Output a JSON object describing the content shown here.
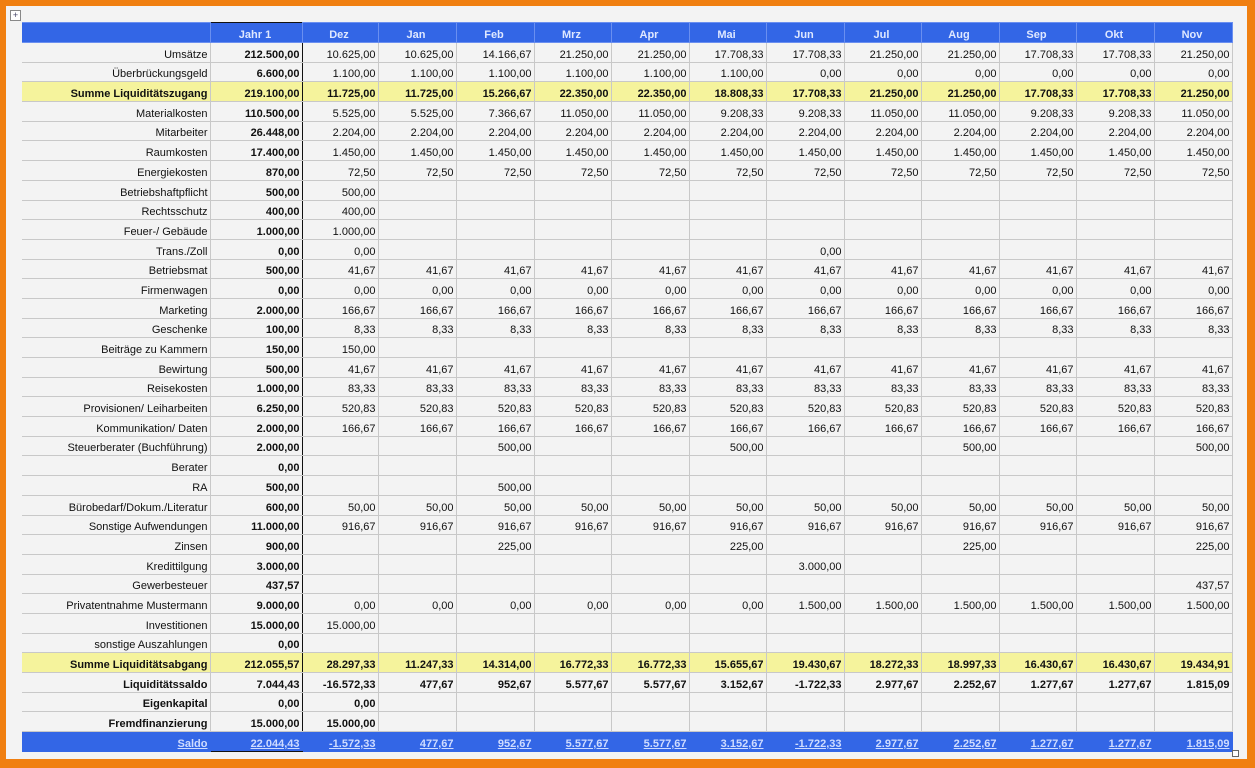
{
  "header": {
    "label": "",
    "columns": [
      "Jahr 1",
      "Dez",
      "Jan",
      "Feb",
      "Mrz",
      "Apr",
      "Mai",
      "Jun",
      "Jul",
      "Aug",
      "Sep",
      "Okt",
      "Nov"
    ]
  },
  "colors": {
    "header": "#3366e6",
    "sum": "#f5f39c",
    "border": "#f07f10"
  },
  "rows": [
    {
      "label": "Umsätze",
      "type": "normal",
      "values": [
        "212.500,00",
        "10.625,00",
        "10.625,00",
        "14.166,67",
        "21.250,00",
        "21.250,00",
        "17.708,33",
        "17.708,33",
        "21.250,00",
        "21.250,00",
        "17.708,33",
        "17.708,33",
        "21.250,00"
      ]
    },
    {
      "label": "Überbrückungsgeld",
      "type": "normal",
      "values": [
        "6.600,00",
        "1.100,00",
        "1.100,00",
        "1.100,00",
        "1.100,00",
        "1.100,00",
        "1.100,00",
        "0,00",
        "0,00",
        "0,00",
        "0,00",
        "0,00",
        "0,00"
      ]
    },
    {
      "label": "Summe Liquiditätszugang",
      "type": "sum",
      "values": [
        "219.100,00",
        "11.725,00",
        "11.725,00",
        "15.266,67",
        "22.350,00",
        "22.350,00",
        "18.808,33",
        "17.708,33",
        "21.250,00",
        "21.250,00",
        "17.708,33",
        "17.708,33",
        "21.250,00"
      ]
    },
    {
      "label": "Materialkosten",
      "type": "normal",
      "values": [
        "110.500,00",
        "5.525,00",
        "5.525,00",
        "7.366,67",
        "11.050,00",
        "11.050,00",
        "9.208,33",
        "9.208,33",
        "11.050,00",
        "11.050,00",
        "9.208,33",
        "9.208,33",
        "11.050,00"
      ]
    },
    {
      "label": "Mitarbeiter",
      "type": "normal",
      "values": [
        "26.448,00",
        "2.204,00",
        "2.204,00",
        "2.204,00",
        "2.204,00",
        "2.204,00",
        "2.204,00",
        "2.204,00",
        "2.204,00",
        "2.204,00",
        "2.204,00",
        "2.204,00",
        "2.204,00"
      ]
    },
    {
      "label": "Raumkosten",
      "type": "normal",
      "values": [
        "17.400,00",
        "1.450,00",
        "1.450,00",
        "1.450,00",
        "1.450,00",
        "1.450,00",
        "1.450,00",
        "1.450,00",
        "1.450,00",
        "1.450,00",
        "1.450,00",
        "1.450,00",
        "1.450,00"
      ]
    },
    {
      "label": "Energiekosten",
      "type": "normal",
      "values": [
        "870,00",
        "72,50",
        "72,50",
        "72,50",
        "72,50",
        "72,50",
        "72,50",
        "72,50",
        "72,50",
        "72,50",
        "72,50",
        "72,50",
        "72,50"
      ]
    },
    {
      "label": "Betriebshaftpflicht",
      "type": "normal",
      "values": [
        "500,00",
        "500,00",
        "",
        "",
        "",
        "",
        "",
        "",
        "",
        "",
        "",
        "",
        ""
      ]
    },
    {
      "label": "Rechtsschutz",
      "type": "normal",
      "values": [
        "400,00",
        "400,00",
        "",
        "",
        "",
        "",
        "",
        "",
        "",
        "",
        "",
        "",
        ""
      ]
    },
    {
      "label": "Feuer-/ Gebäude",
      "type": "normal",
      "values": [
        "1.000,00",
        "1.000,00",
        "",
        "",
        "",
        "",
        "",
        "",
        "",
        "",
        "",
        "",
        ""
      ]
    },
    {
      "label": "Trans./Zoll",
      "type": "normal",
      "values": [
        "0,00",
        "0,00",
        "",
        "",
        "",
        "",
        "",
        "0,00",
        "",
        "",
        "",
        "",
        ""
      ]
    },
    {
      "label": "Betriebsmat",
      "type": "normal",
      "values": [
        "500,00",
        "41,67",
        "41,67",
        "41,67",
        "41,67",
        "41,67",
        "41,67",
        "41,67",
        "41,67",
        "41,67",
        "41,67",
        "41,67",
        "41,67"
      ]
    },
    {
      "label": "Firmenwagen",
      "type": "normal",
      "values": [
        "0,00",
        "0,00",
        "0,00",
        "0,00",
        "0,00",
        "0,00",
        "0,00",
        "0,00",
        "0,00",
        "0,00",
        "0,00",
        "0,00",
        "0,00"
      ]
    },
    {
      "label": "Marketing",
      "type": "normal",
      "values": [
        "2.000,00",
        "166,67",
        "166,67",
        "166,67",
        "166,67",
        "166,67",
        "166,67",
        "166,67",
        "166,67",
        "166,67",
        "166,67",
        "166,67",
        "166,67"
      ]
    },
    {
      "label": "Geschenke",
      "type": "normal",
      "values": [
        "100,00",
        "8,33",
        "8,33",
        "8,33",
        "8,33",
        "8,33",
        "8,33",
        "8,33",
        "8,33",
        "8,33",
        "8,33",
        "8,33",
        "8,33"
      ]
    },
    {
      "label": "Beiträge zu Kammern",
      "type": "normal",
      "values": [
        "150,00",
        "150,00",
        "",
        "",
        "",
        "",
        "",
        "",
        "",
        "",
        "",
        "",
        ""
      ]
    },
    {
      "label": "Bewirtung",
      "type": "normal",
      "values": [
        "500,00",
        "41,67",
        "41,67",
        "41,67",
        "41,67",
        "41,67",
        "41,67",
        "41,67",
        "41,67",
        "41,67",
        "41,67",
        "41,67",
        "41,67"
      ]
    },
    {
      "label": "Reisekosten",
      "type": "normal",
      "values": [
        "1.000,00",
        "83,33",
        "83,33",
        "83,33",
        "83,33",
        "83,33",
        "83,33",
        "83,33",
        "83,33",
        "83,33",
        "83,33",
        "83,33",
        "83,33"
      ]
    },
    {
      "label": "Provisionen/ Leiharbeiten",
      "type": "normal",
      "values": [
        "6.250,00",
        "520,83",
        "520,83",
        "520,83",
        "520,83",
        "520,83",
        "520,83",
        "520,83",
        "520,83",
        "520,83",
        "520,83",
        "520,83",
        "520,83"
      ]
    },
    {
      "label": "Kommunikation/ Daten",
      "type": "normal",
      "values": [
        "2.000,00",
        "166,67",
        "166,67",
        "166,67",
        "166,67",
        "166,67",
        "166,67",
        "166,67",
        "166,67",
        "166,67",
        "166,67",
        "166,67",
        "166,67"
      ]
    },
    {
      "label": "Steuerberater (Buchführung)",
      "type": "normal",
      "values": [
        "2.000,00",
        "",
        "",
        "500,00",
        "",
        "",
        "500,00",
        "",
        "",
        "500,00",
        "",
        "",
        "500,00"
      ]
    },
    {
      "label": "Berater",
      "type": "normal",
      "values": [
        "0,00",
        "",
        "",
        "",
        "",
        "",
        "",
        "",
        "",
        "",
        "",
        "",
        ""
      ]
    },
    {
      "label": "RA",
      "type": "normal",
      "values": [
        "500,00",
        "",
        "",
        "500,00",
        "",
        "",
        "",
        "",
        "",
        "",
        "",
        "",
        ""
      ]
    },
    {
      "label": "Bürobedarf/Dokum./Literatur",
      "type": "normal",
      "values": [
        "600,00",
        "50,00",
        "50,00",
        "50,00",
        "50,00",
        "50,00",
        "50,00",
        "50,00",
        "50,00",
        "50,00",
        "50,00",
        "50,00",
        "50,00"
      ]
    },
    {
      "label": "Sonstige Aufwendungen",
      "type": "normal",
      "values": [
        "11.000,00",
        "916,67",
        "916,67",
        "916,67",
        "916,67",
        "916,67",
        "916,67",
        "916,67",
        "916,67",
        "916,67",
        "916,67",
        "916,67",
        "916,67"
      ]
    },
    {
      "label": "Zinsen",
      "type": "normal",
      "values": [
        "900,00",
        "",
        "",
        "225,00",
        "",
        "",
        "225,00",
        "",
        "",
        "225,00",
        "",
        "",
        "225,00"
      ]
    },
    {
      "label": "Kredittilgung",
      "type": "normal",
      "values": [
        "3.000,00",
        "",
        "",
        "",
        "",
        "",
        "",
        "3.000,00",
        "",
        "",
        "",
        "",
        ""
      ]
    },
    {
      "label": "Gewerbesteuer",
      "type": "normal",
      "values": [
        "437,57",
        "",
        "",
        "",
        "",
        "",
        "",
        "",
        "",
        "",
        "",
        "",
        "437,57"
      ]
    },
    {
      "label": "Privatentnahme Mustermann",
      "type": "normal",
      "values": [
        "9.000,00",
        "0,00",
        "0,00",
        "0,00",
        "0,00",
        "0,00",
        "0,00",
        "1.500,00",
        "1.500,00",
        "1.500,00",
        "1.500,00",
        "1.500,00",
        "1.500,00"
      ]
    },
    {
      "label": "Investitionen",
      "type": "normal",
      "values": [
        "15.000,00",
        "15.000,00",
        "",
        "",
        "",
        "",
        "",
        "",
        "",
        "",
        "",
        "",
        ""
      ]
    },
    {
      "label": "sonstige Auszahlungen",
      "type": "normal",
      "values": [
        "0,00",
        "",
        "",
        "",
        "",
        "",
        "",
        "",
        "",
        "",
        "",
        "",
        ""
      ]
    },
    {
      "label": "Summe Liquiditätsabgang",
      "type": "sum",
      "values": [
        "212.055,57",
        "28.297,33",
        "11.247,33",
        "14.314,00",
        "16.772,33",
        "16.772,33",
        "15.655,67",
        "19.430,67",
        "18.272,33",
        "18.997,33",
        "16.430,67",
        "16.430,67",
        "19.434,91"
      ]
    },
    {
      "label": "Liquiditätssaldo",
      "type": "bold",
      "values": [
        "7.044,43",
        "-16.572,33",
        "477,67",
        "952,67",
        "5.577,67",
        "5.577,67",
        "3.152,67",
        "-1.722,33",
        "2.977,67",
        "2.252,67",
        "1.277,67",
        "1.277,67",
        "1.815,09"
      ]
    },
    {
      "label": "Eigenkapital",
      "type": "bold",
      "values": [
        "0,00",
        "0,00",
        "",
        "",
        "",
        "",
        "",
        "",
        "",
        "",
        "",
        "",
        ""
      ]
    },
    {
      "label": "Fremdfinanzierung",
      "type": "bold",
      "values": [
        "15.000,00",
        "15.000,00",
        "",
        "",
        "",
        "",
        "",
        "",
        "",
        "",
        "",
        "",
        ""
      ]
    },
    {
      "label": "Saldo",
      "type": "saldo",
      "values": [
        "22.044,43",
        "-1.572,33",
        "477,67",
        "952,67",
        "5.577,67",
        "5.577,67",
        "3.152,67",
        "-1.722,33",
        "2.977,67",
        "2.252,67",
        "1.277,67",
        "1.277,67",
        "1.815,09"
      ]
    }
  ]
}
